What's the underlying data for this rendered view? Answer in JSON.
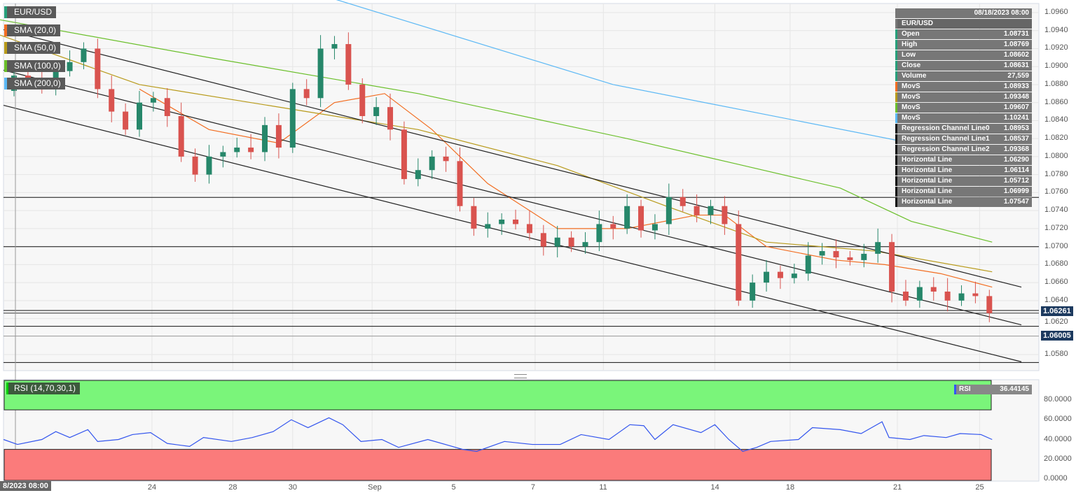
{
  "symbol": "EUR/USD",
  "legend": [
    {
      "label": "EUR/USD",
      "color": "#26a07a"
    },
    {
      "label": "SMA (20,0)",
      "color": "#f26d21"
    },
    {
      "label": "SMA (50,0)",
      "color": "#b89a1a"
    },
    {
      "label": "SMA (100,0)",
      "color": "#6abf2a"
    },
    {
      "label": "SMA (200,0)",
      "color": "#5bb8f5"
    }
  ],
  "info_panel": {
    "datetime": "08/18/2023 08:00",
    "symbol": "EUR/USD",
    "rows": [
      {
        "label": "Open",
        "value": "1.08731",
        "color": "#26a07a"
      },
      {
        "label": "High",
        "value": "1.08769",
        "color": "#26a07a"
      },
      {
        "label": "Low",
        "value": "1.08602",
        "color": "#26a07a"
      },
      {
        "label": "Close",
        "value": "1.08631",
        "color": "#26a07a"
      },
      {
        "label": "Volume",
        "value": "27,559",
        "color": "#26a07a"
      },
      {
        "label": "MovS",
        "value": "1.08933",
        "color": "#f26d21"
      },
      {
        "label": "MovS",
        "value": "1.09348",
        "color": "#b89a1a"
      },
      {
        "label": "MovS",
        "value": "1.09607",
        "color": "#6abf2a"
      },
      {
        "label": "MovS",
        "value": "1.10241",
        "color": "#5bb8f5"
      },
      {
        "label": "Regression Channel Line0",
        "value": "1.08953",
        "color": "#111"
      },
      {
        "label": "Regression Channel Line1",
        "value": "1.08537",
        "color": "#111"
      },
      {
        "label": "Regression Channel Line2",
        "value": "1.09368",
        "color": "#111"
      },
      {
        "label": "Horizontal Line",
        "value": "1.06290",
        "color": "#111"
      },
      {
        "label": "Horizontal Line",
        "value": "1.06114",
        "color": "#111"
      },
      {
        "label": "Horizontal Line",
        "value": "1.05712",
        "color": "#111"
      },
      {
        "label": "Horizontal Line",
        "value": "1.06999",
        "color": "#111"
      },
      {
        "label": "Horizontal Line",
        "value": "1.07547",
        "color": "#111"
      }
    ]
  },
  "price_badges": [
    "1.06261",
    "1.06005"
  ],
  "crosshair_label": "8/2023 08:00",
  "rsi": {
    "label": "RSI (14,70,30,1)",
    "name": "RSI",
    "value": "36.44145"
  },
  "chart_data": {
    "type": "candlestick",
    "title": "EUR/USD",
    "ylim": [
      1.057,
      1.0965
    ],
    "yticks": [
      "1.0960",
      "1.0940",
      "1.0920",
      "1.0900",
      "1.0880",
      "1.0860",
      "1.0840",
      "1.0820",
      "1.0800",
      "1.0780",
      "1.0760",
      "1.0740",
      "1.0720",
      "1.0700",
      "1.0680",
      "1.0660",
      "1.0640",
      "1.0620",
      "1.0580"
    ],
    "xticks": [
      {
        "label": "24",
        "i": 9.9
      },
      {
        "label": "28",
        "i": 15.7
      },
      {
        "label": "30",
        "i": 20
      },
      {
        "label": "Sep",
        "i": 25.7
      },
      {
        "label": "5",
        "i": 31.7
      },
      {
        "label": "7",
        "i": 37.4
      },
      {
        "label": "11",
        "i": 42.3
      },
      {
        "label": "14",
        "i": 50.3
      },
      {
        "label": "18",
        "i": 55.7
      },
      {
        "label": "21",
        "i": 63.4
      },
      {
        "label": "25",
        "i": 69.3
      }
    ],
    "close": [
      1.089,
      1.0885,
      1.088,
      1.0895,
      1.0905,
      1.092,
      1.0875,
      1.085,
      1.083,
      1.086,
      1.0865,
      1.0845,
      1.08,
      1.078,
      1.08,
      1.0805,
      1.081,
      1.0805,
      1.0835,
      1.081,
      1.0875,
      1.0865,
      1.092,
      1.0925,
      1.088,
      1.0845,
      1.0855,
      1.083,
      1.0775,
      1.0785,
      1.08,
      1.0795,
      1.0745,
      1.072,
      1.0725,
      1.073,
      1.0725,
      1.0715,
      1.07,
      1.071,
      1.07,
      1.0705,
      1.0725,
      1.072,
      1.0745,
      1.0718,
      1.0725,
      1.0755,
      1.0745,
      1.0735,
      1.0745,
      1.0725,
      1.064,
      1.066,
      1.0672,
      1.0665,
      1.067,
      1.069,
      1.0695,
      1.0688,
      1.0685,
      1.0692,
      1.0705,
      1.065,
      1.064,
      1.0655,
      1.065,
      1.064,
      1.0648,
      1.0645,
      1.0626
    ],
    "open_first": 1.0873,
    "sma": [
      {
        "name": "SMA (20,0)",
        "color": "#f26d21",
        "points": [
          [
            9,
            1.0875
          ],
          [
            14,
            1.083
          ],
          [
            19,
            1.0815
          ],
          [
            23,
            1.086
          ],
          [
            26.6,
            1.087
          ],
          [
            30,
            1.083
          ],
          [
            34,
            1.077
          ],
          [
            39,
            1.072
          ],
          [
            44,
            1.072
          ],
          [
            49,
            1.0735
          ],
          [
            51,
            1.0735
          ],
          [
            54,
            1.07
          ],
          [
            59,
            1.0685
          ],
          [
            62.5,
            1.068
          ],
          [
            66.5,
            1.067
          ],
          [
            70.2,
            1.0655
          ]
        ]
      },
      {
        "name": "SMA (50,0)",
        "color": "#b89a1a",
        "points": [
          [
            -1,
            1.0935
          ],
          [
            9,
            1.088
          ],
          [
            19,
            1.0855
          ],
          [
            29,
            1.083
          ],
          [
            39,
            1.079
          ],
          [
            46.8,
            1.0745
          ],
          [
            54,
            1.0705
          ],
          [
            61.8,
            1.0695
          ],
          [
            70.2,
            1.0672
          ]
        ]
      },
      {
        "name": "SMA (100,0)",
        "color": "#6abf2a",
        "points": [
          [
            -1,
            1.0952
          ],
          [
            14,
            1.091
          ],
          [
            29,
            1.087
          ],
          [
            44,
            1.082
          ],
          [
            51.8,
            1.0792
          ],
          [
            59.3,
            1.0765
          ],
          [
            64.4,
            1.0728
          ],
          [
            70.2,
            1.0705
          ]
        ]
      },
      {
        "name": "SMA (200,0)",
        "color": "#5bb8f5",
        "points": [
          [
            23,
            1.0975
          ],
          [
            43,
            1.088
          ],
          [
            63.4,
            1.0818
          ]
        ]
      }
    ],
    "regression_channel": [
      [
        [
          -0.75,
          1.0941
        ],
        [
          72.3,
          1.0655
        ]
      ],
      [
        [
          -0.75,
          1.0896
        ],
        [
          72.3,
          1.0613
        ]
      ],
      [
        [
          -0.75,
          1.0857
        ],
        [
          72.3,
          1.0572
        ]
      ]
    ],
    "horizontal_lines": [
      1.07547,
      1.06999,
      1.0629,
      1.06114,
      1.05712
    ],
    "rsi_series": {
      "ylim": [
        0,
        100
      ],
      "yticks": [
        "80.0000",
        "60.0000",
        "40.0000",
        "20.0000",
        "0.0000"
      ],
      "overbought": 70,
      "oversold": 30,
      "points": [
        [
          -0.75,
          40
        ],
        [
          0.25,
          35
        ],
        [
          2,
          40
        ],
        [
          3,
          48
        ],
        [
          4,
          42
        ],
        [
          5.3,
          50
        ],
        [
          6,
          38
        ],
        [
          7.5,
          40
        ],
        [
          8.5,
          45
        ],
        [
          9.8,
          47
        ],
        [
          11,
          36
        ],
        [
          12.6,
          33
        ],
        [
          13.6,
          42
        ],
        [
          15.6,
          38
        ],
        [
          17.1,
          42
        ],
        [
          18.6,
          48
        ],
        [
          19.9,
          60
        ],
        [
          21.1,
          52
        ],
        [
          22.6,
          62
        ],
        [
          23.6,
          55
        ],
        [
          24.9,
          38
        ],
        [
          26.4,
          40
        ],
        [
          27.6,
          32
        ],
        [
          29.7,
          40
        ],
        [
          32.2,
          30
        ],
        [
          33.2,
          28
        ],
        [
          35.2,
          38
        ],
        [
          37.2,
          35
        ],
        [
          39.2,
          35
        ],
        [
          40.7,
          45
        ],
        [
          42.7,
          40
        ],
        [
          44.2,
          55
        ],
        [
          45.2,
          54
        ],
        [
          46,
          40
        ],
        [
          47.3,
          55
        ],
        [
          49.3,
          47
        ],
        [
          50.3,
          55
        ],
        [
          51.3,
          40
        ],
        [
          52.3,
          28
        ],
        [
          53.3,
          32
        ],
        [
          54.3,
          38
        ],
        [
          56.3,
          40
        ],
        [
          57.3,
          52
        ],
        [
          59.3,
          50
        ],
        [
          60.8,
          46
        ],
        [
          62.3,
          58
        ],
        [
          62.8,
          42
        ],
        [
          64.3,
          40
        ],
        [
          65.3,
          44
        ],
        [
          66.9,
          42
        ],
        [
          67.9,
          46
        ],
        [
          69.4,
          45
        ],
        [
          70.2,
          40
        ]
      ]
    }
  }
}
